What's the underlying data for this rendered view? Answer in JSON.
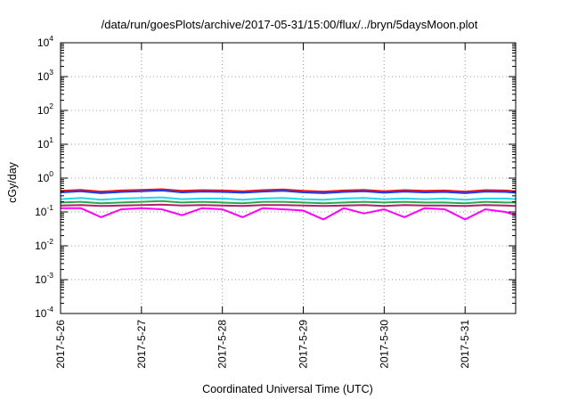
{
  "chart_data": {
    "type": "line",
    "title": "/data/run/goesPlots/archive/2017-05-31/15:00/flux/../bryn/5daysMoon.plot",
    "xlabel": "Coordinated Universal Time (UTC)",
    "ylabel": "cGy/day",
    "yscale": "log",
    "ylim": [
      0.0001,
      10000
    ],
    "xlim": [
      "2017-05-26 00:00",
      "2017-05-31 15:00"
    ],
    "grid": true,
    "legend": "none",
    "x_ticks": [
      "2017-5-26",
      "2017-5-27",
      "2017-5-28",
      "2017-5-29",
      "2017-5-30",
      "2017-5-31"
    ],
    "y_ticks": [
      {
        "base": "10",
        "exp": "-4"
      },
      {
        "base": "10",
        "exp": "-3"
      },
      {
        "base": "10",
        "exp": "-2"
      },
      {
        "base": "10",
        "exp": "-1"
      },
      {
        "base": "10",
        "exp": "0"
      },
      {
        "base": "10",
        "exp": "1"
      },
      {
        "base": "10",
        "exp": "2"
      },
      {
        "base": "10",
        "exp": "3"
      },
      {
        "base": "10",
        "exp": "4"
      }
    ],
    "x": [
      "2017-05-26 00:00",
      "2017-05-26 06:00",
      "2017-05-26 12:00",
      "2017-05-26 18:00",
      "2017-05-27 00:00",
      "2017-05-27 06:00",
      "2017-05-27 12:00",
      "2017-05-27 18:00",
      "2017-05-28 00:00",
      "2017-05-28 06:00",
      "2017-05-28 12:00",
      "2017-05-28 18:00",
      "2017-05-29 00:00",
      "2017-05-29 06:00",
      "2017-05-29 12:00",
      "2017-05-29 18:00",
      "2017-05-30 00:00",
      "2017-05-30 06:00",
      "2017-05-30 12:00",
      "2017-05-30 18:00",
      "2017-05-31 00:00",
      "2017-05-31 06:00",
      "2017-05-31 12:00",
      "2017-05-31 15:00"
    ],
    "series": [
      {
        "color": "#e8131b",
        "values": [
          0.42,
          0.45,
          0.4,
          0.43,
          0.45,
          0.47,
          0.42,
          0.44,
          0.43,
          0.41,
          0.44,
          0.46,
          0.42,
          0.4,
          0.43,
          0.45,
          0.41,
          0.44,
          0.42,
          0.43,
          0.4,
          0.44,
          0.43,
          0.41
        ]
      },
      {
        "color": "#1f3ce8",
        "values": [
          0.38,
          0.41,
          0.36,
          0.39,
          0.41,
          0.43,
          0.38,
          0.4,
          0.39,
          0.37,
          0.4,
          0.42,
          0.38,
          0.36,
          0.39,
          0.41,
          0.37,
          0.4,
          0.38,
          0.39,
          0.36,
          0.4,
          0.39,
          0.37
        ]
      },
      {
        "color": "#22d8e8",
        "values": [
          0.24,
          0.26,
          0.23,
          0.25,
          0.26,
          0.27,
          0.24,
          0.25,
          0.25,
          0.23,
          0.25,
          0.26,
          0.24,
          0.23,
          0.25,
          0.26,
          0.24,
          0.25,
          0.24,
          0.25,
          0.23,
          0.25,
          0.25,
          0.24
        ]
      },
      {
        "color": "#2aa84a",
        "values": [
          0.19,
          0.2,
          0.18,
          0.19,
          0.2,
          0.21,
          0.19,
          0.2,
          0.19,
          0.18,
          0.2,
          0.2,
          0.19,
          0.18,
          0.19,
          0.2,
          0.19,
          0.2,
          0.19,
          0.19,
          0.18,
          0.2,
          0.19,
          0.19
        ]
      },
      {
        "color": "#b0206a",
        "values": [
          0.155,
          0.16,
          0.15,
          0.155,
          0.16,
          0.165,
          0.155,
          0.16,
          0.155,
          0.15,
          0.16,
          0.16,
          0.155,
          0.15,
          0.155,
          0.16,
          0.15,
          0.16,
          0.155,
          0.155,
          0.15,
          0.16,
          0.155,
          0.15
        ]
      },
      {
        "color": "#ff00ff",
        "values": [
          0.13,
          0.13,
          0.07,
          0.12,
          0.13,
          0.12,
          0.08,
          0.13,
          0.12,
          0.07,
          0.13,
          0.12,
          0.11,
          0.06,
          0.13,
          0.09,
          0.12,
          0.07,
          0.13,
          0.12,
          0.06,
          0.12,
          0.1,
          0.08
        ]
      }
    ]
  }
}
